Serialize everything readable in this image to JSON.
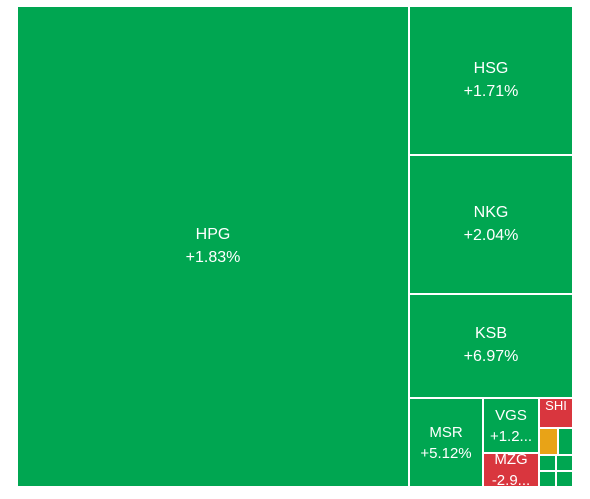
{
  "colors": {
    "up": "#00a651",
    "down": "#d9363e",
    "flat": "#e8a317",
    "border": "#ffffff"
  },
  "chart_data": {
    "type": "treemap",
    "tiles": [
      {
        "symbol": "HPG",
        "change": "+1.83%",
        "status": "up"
      },
      {
        "symbol": "HSG",
        "change": "+1.71%",
        "status": "up"
      },
      {
        "symbol": "NKG",
        "change": "+2.04%",
        "status": "up"
      },
      {
        "symbol": "KSB",
        "change": "+6.97%",
        "status": "up"
      },
      {
        "symbol": "MSR",
        "change": "+5.12%",
        "status": "up"
      },
      {
        "symbol": "VGS",
        "change": "+1.2...",
        "status": "up"
      },
      {
        "symbol": "MZG",
        "change": "-2.9...",
        "status": "down"
      },
      {
        "symbol": "SHI",
        "change": "",
        "status": "down"
      },
      {
        "symbol": "",
        "change": "",
        "status": "flat"
      },
      {
        "symbol": "",
        "change": "",
        "status": "up"
      },
      {
        "symbol": "",
        "change": "",
        "status": "up"
      },
      {
        "symbol": "",
        "change": "",
        "status": "up"
      },
      {
        "symbol": "",
        "change": "",
        "status": "up"
      },
      {
        "symbol": "",
        "change": "",
        "status": "up"
      }
    ]
  }
}
